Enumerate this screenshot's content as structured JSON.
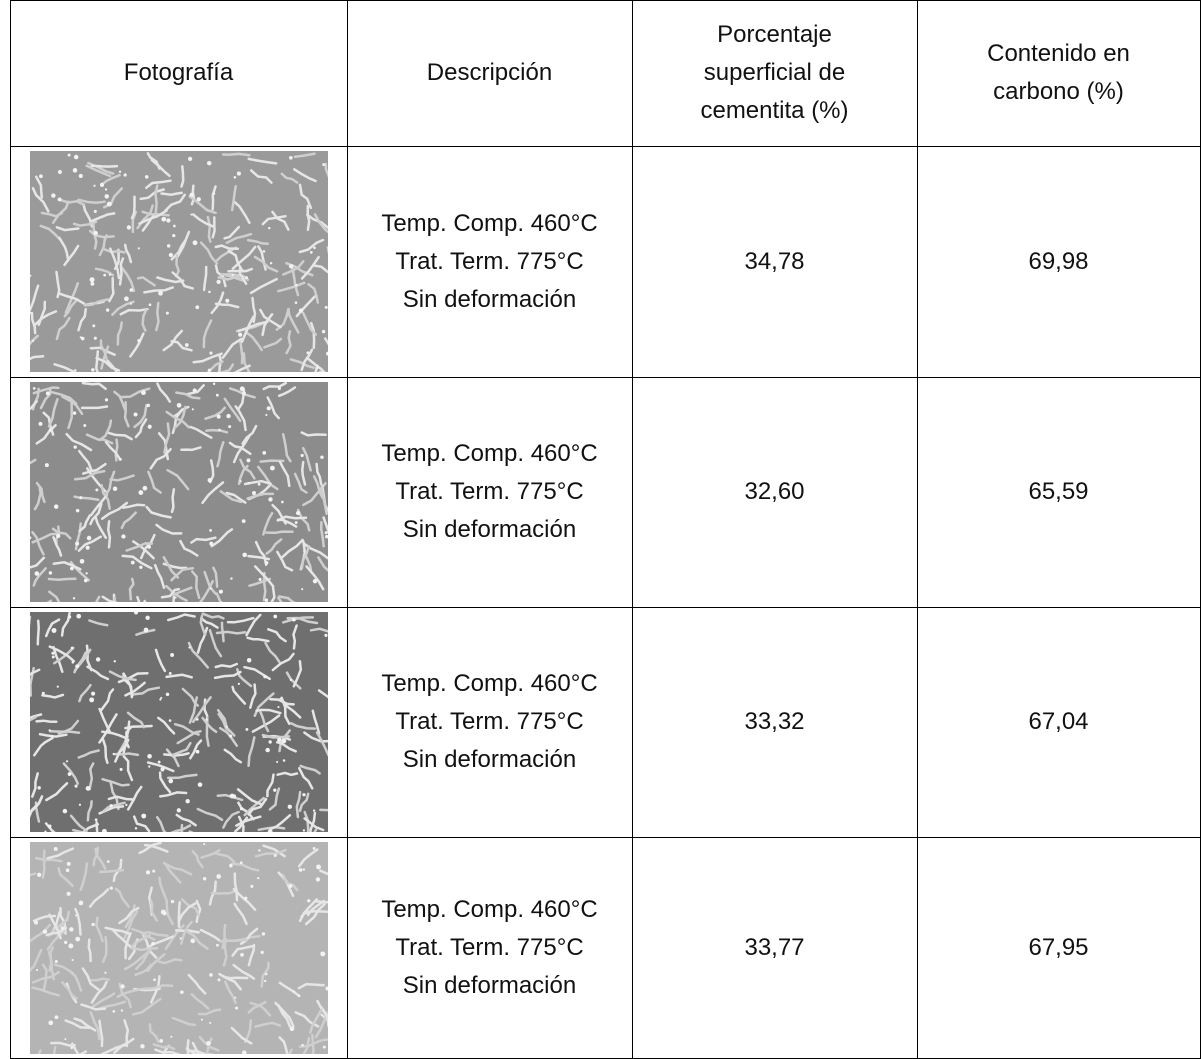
{
  "table": {
    "header": [
      [
        "Fotografía"
      ],
      [
        "Descripción"
      ],
      [
        "Porcentaje",
        "superficial de",
        "cementita (%)"
      ],
      [
        "Contenido en",
        "carbono (%)"
      ]
    ],
    "rows": [
      {
        "description": [
          "Temp. Comp. 460°C",
          "Trat. Term. 775°C",
          "Sin deformación"
        ],
        "cementita": "34,78",
        "carbono": "69,98"
      },
      {
        "description": [
          "Temp. Comp. 460°C",
          "Trat. Term. 775°C",
          "Sin deformación"
        ],
        "cementita": "32,60",
        "carbono": "65,59"
      },
      {
        "description": [
          "Temp. Comp. 460°C",
          "Trat. Term. 775°C",
          "Sin deformación"
        ],
        "cementita": "33,32",
        "carbono": "67,04"
      },
      {
        "description": [
          "Temp. Comp. 460°C",
          "Trat. Term. 775°C",
          "Sin deformación"
        ],
        "cementita": "33,77",
        "carbono": "67,95"
      }
    ]
  }
}
